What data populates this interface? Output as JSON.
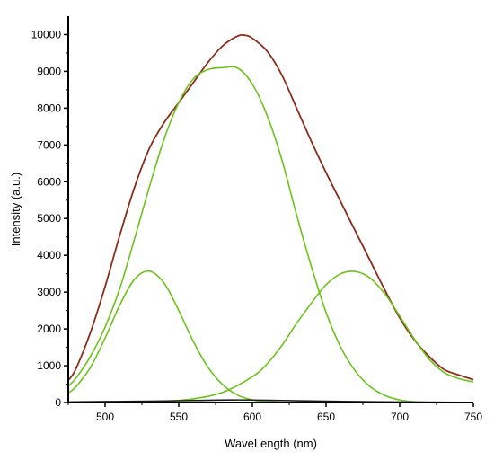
{
  "chart_data": {
    "type": "line",
    "xlabel": "WaveLength (nm)",
    "ylabel": "Intensity (a.u.)",
    "xlim": [
      475,
      750
    ],
    "ylim": [
      0,
      10500
    ],
    "x_ticks": [
      500,
      550,
      600,
      650,
      700,
      750
    ],
    "y_ticks": [
      0,
      1000,
      2000,
      3000,
      4000,
      5000,
      6000,
      7000,
      8000,
      9000,
      10000
    ],
    "grid": false,
    "series": [
      {
        "color": "#8b2d1a",
        "x": [
          475,
          480,
          490,
          500,
          510,
          520,
          530,
          540,
          550,
          560,
          570,
          580,
          590,
          595,
          600,
          610,
          620,
          630,
          640,
          650,
          660,
          670,
          680,
          690,
          700,
          710,
          720,
          730,
          740,
          750
        ],
        "values": [
          600,
          900,
          1900,
          3150,
          4550,
          5850,
          6900,
          7600,
          8150,
          8700,
          9250,
          9700,
          9960,
          9980,
          9900,
          9550,
          8900,
          8000,
          7100,
          6250,
          5450,
          4650,
          3850,
          3050,
          2300,
          1700,
          1250,
          900,
          750,
          620
        ]
      },
      {
        "color": "#6cc21a",
        "x": [
          475,
          480,
          490,
          500,
          510,
          520,
          530,
          540,
          550,
          560,
          570,
          580,
          590,
          600,
          610,
          620,
          630,
          640,
          650,
          660,
          670,
          680,
          690,
          700,
          710,
          720,
          730,
          740,
          750
        ],
        "values": [
          450,
          650,
          1250,
          2050,
          3100,
          4450,
          5850,
          7150,
          8150,
          8800,
          9050,
          9100,
          9090,
          8650,
          7800,
          6600,
          5100,
          3700,
          2450,
          1500,
          850,
          430,
          190,
          70,
          20,
          5,
          0,
          0,
          0
        ]
      },
      {
        "color": "#6cc21a",
        "x": [
          475,
          480,
          490,
          500,
          510,
          520,
          530,
          540,
          550,
          560,
          570,
          580,
          590,
          600,
          610,
          620
        ],
        "values": [
          260,
          420,
          950,
          1750,
          2650,
          3350,
          3570,
          3250,
          2500,
          1650,
          950,
          480,
          200,
          70,
          20,
          5
        ]
      },
      {
        "color": "#6cc21a",
        "x": [
          540,
          560,
          580,
          600,
          610,
          620,
          630,
          640,
          650,
          660,
          670,
          680,
          690,
          700,
          710,
          720,
          730,
          740,
          750
        ],
        "values": [
          30,
          100,
          280,
          700,
          1050,
          1550,
          2150,
          2700,
          3200,
          3500,
          3560,
          3380,
          2950,
          2350,
          1720,
          1180,
          820,
          650,
          560
        ]
      },
      {
        "color": "#1a1a1a",
        "x": [
          475,
          500,
          530,
          560,
          590,
          620,
          650,
          680,
          710,
          750
        ],
        "values": [
          15,
          25,
          35,
          55,
          70,
          55,
          35,
          20,
          10,
          5
        ]
      }
    ]
  }
}
